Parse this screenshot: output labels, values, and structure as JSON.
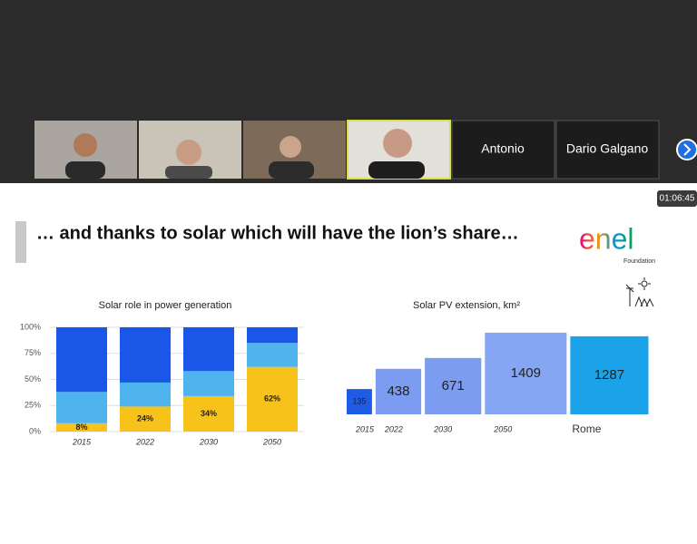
{
  "participants": [
    {
      "name": "Antonio"
    },
    {
      "name": "Dario Galgano"
    }
  ],
  "timer": "01:06:45",
  "slide": {
    "title": "… and thanks to solar which will have the lion’s share…",
    "logo": "enel",
    "logo_subtitle": "Foundation"
  },
  "chart_data": [
    {
      "type": "stacked-bar",
      "title": "Solar role in power generation",
      "categories": [
        "2015",
        "2022",
        "2030",
        "2050"
      ],
      "series": [
        {
          "color": "#f7c21a",
          "values": [
            8,
            24,
            34,
            62
          ],
          "value_labels": [
            "8%",
            "24%",
            "34%",
            "62%"
          ]
        },
        {
          "color": "#4fb4ee",
          "values": [
            30,
            23,
            24,
            23
          ]
        },
        {
          "color": "#1a56e8",
          "values": [
            62,
            53,
            42,
            15
          ]
        }
      ],
      "ylim": [
        0,
        100
      ],
      "yticks": [
        {
          "value": 0,
          "label": "0%"
        },
        {
          "value": 25,
          "label": "25%"
        },
        {
          "value": 50,
          "label": "50%"
        },
        {
          "value": 75,
          "label": "75%"
        },
        {
          "value": 100,
          "label": "100%"
        }
      ],
      "grid": true
    },
    {
      "type": "area-box",
      "title": "Solar PV extension, km²",
      "categories": [
        "2015",
        "2022",
        "2030",
        "2050",
        "Rome"
      ],
      "values": [
        135,
        438,
        671,
        1409,
        1287
      ],
      "colors": [
        "#1f5ce6",
        "#7b9cf0",
        "#7b9cf0",
        "#86a6f4",
        "#1aa3e8"
      ]
    }
  ]
}
